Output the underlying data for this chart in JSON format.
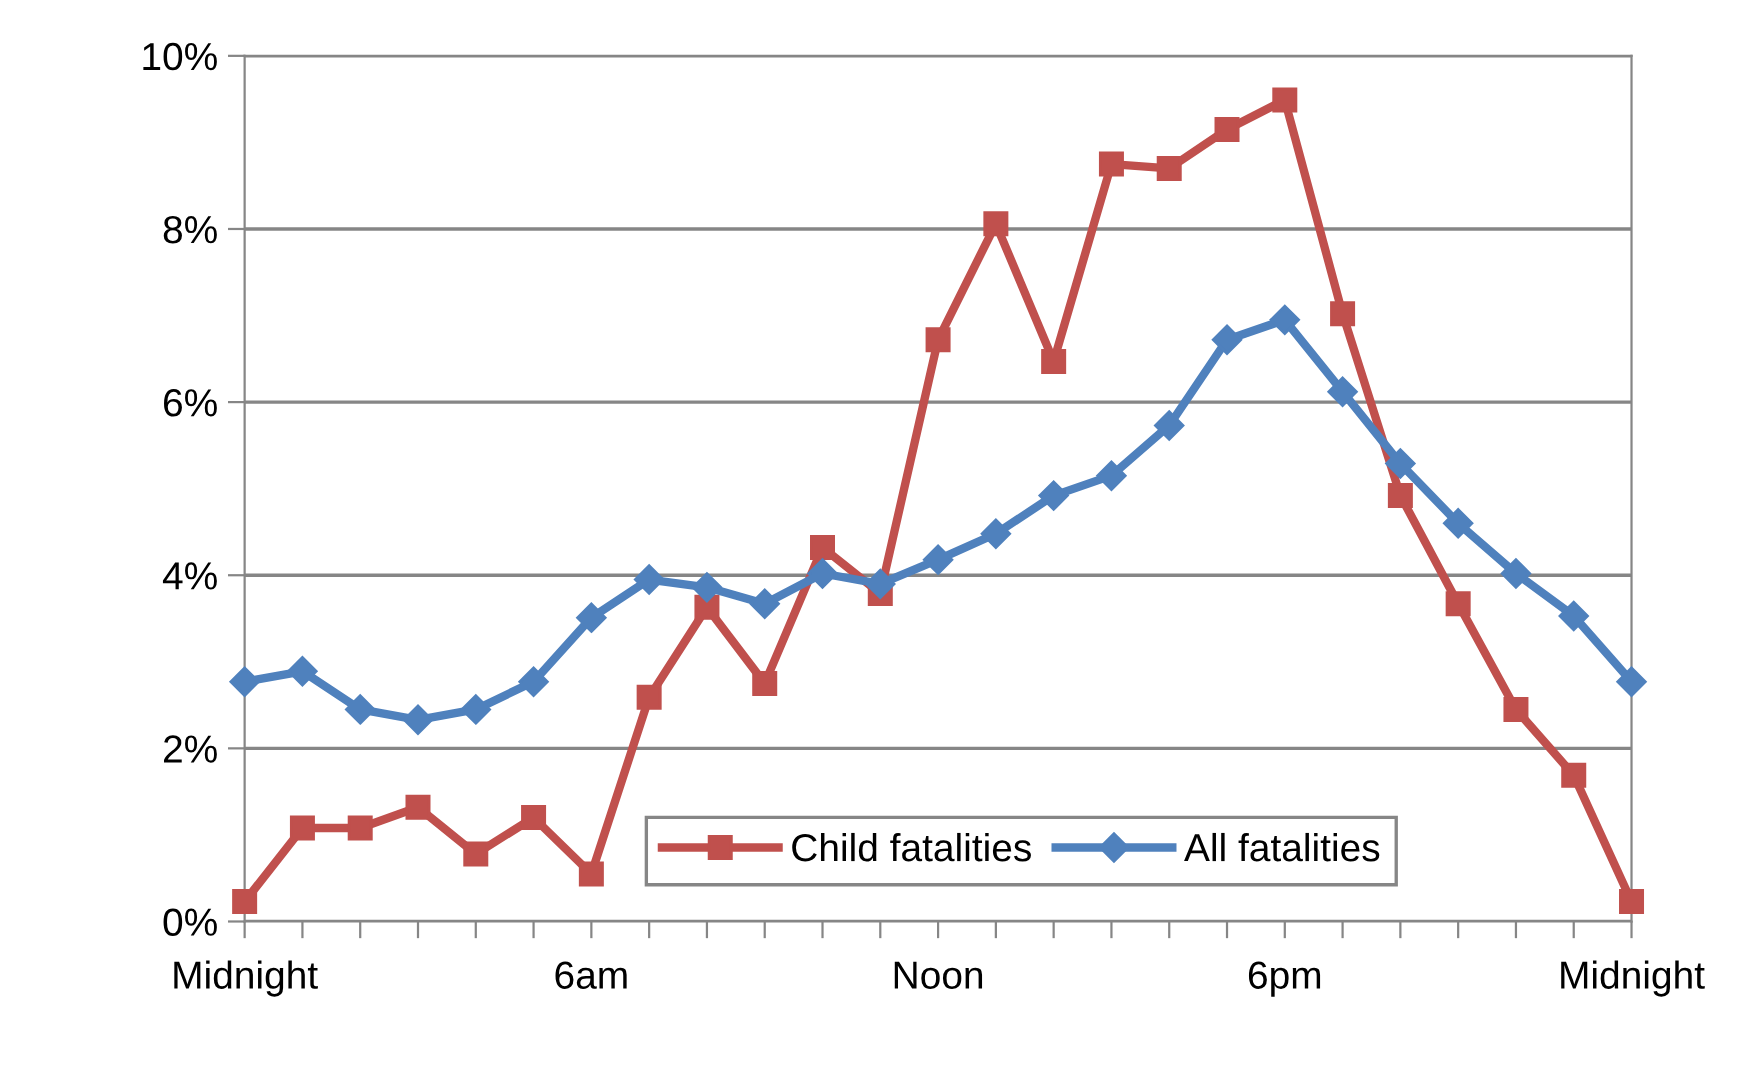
{
  "chart_data": {
    "type": "line",
    "categories": [
      "Midnight",
      null,
      null,
      null,
      null,
      null,
      "6am",
      null,
      null,
      null,
      null,
      null,
      "Noon",
      null,
      null,
      null,
      null,
      null,
      "6pm",
      null,
      null,
      null,
      null,
      null,
      "Midnight"
    ],
    "series": [
      {
        "name": "Child fatalities",
        "color": "#c0504d",
        "marker": "square",
        "values": [
          0.23,
          1.08,
          1.08,
          1.32,
          0.78,
          1.2,
          0.55,
          2.59,
          3.63,
          2.75,
          4.32,
          3.79,
          6.72,
          8.06,
          6.47,
          8.75,
          8.7,
          9.15,
          9.49,
          7.02,
          4.92,
          3.67,
          2.45,
          1.69,
          0.23
        ]
      },
      {
        "name": "All fatalities",
        "color": "#4f81bd",
        "marker": "diamond",
        "values": [
          2.77,
          2.89,
          2.45,
          2.33,
          2.45,
          2.77,
          3.51,
          3.95,
          3.86,
          3.67,
          4.02,
          3.9,
          4.18,
          4.48,
          4.92,
          5.15,
          5.73,
          6.72,
          6.95,
          6.12,
          5.29,
          4.6,
          4.02,
          3.53,
          2.77
        ]
      }
    ],
    "ylim": [
      0,
      10
    ],
    "yticks": [
      {
        "value": 0,
        "label": "0%"
      },
      {
        "value": 2,
        "label": "2%"
      },
      {
        "value": 4,
        "label": "4%"
      },
      {
        "value": 6,
        "label": "6%"
      },
      {
        "value": 8,
        "label": "8%"
      },
      {
        "value": 10,
        "label": "10%"
      }
    ],
    "grid": "y",
    "legend": "bottom",
    "line_style": "solid"
  }
}
